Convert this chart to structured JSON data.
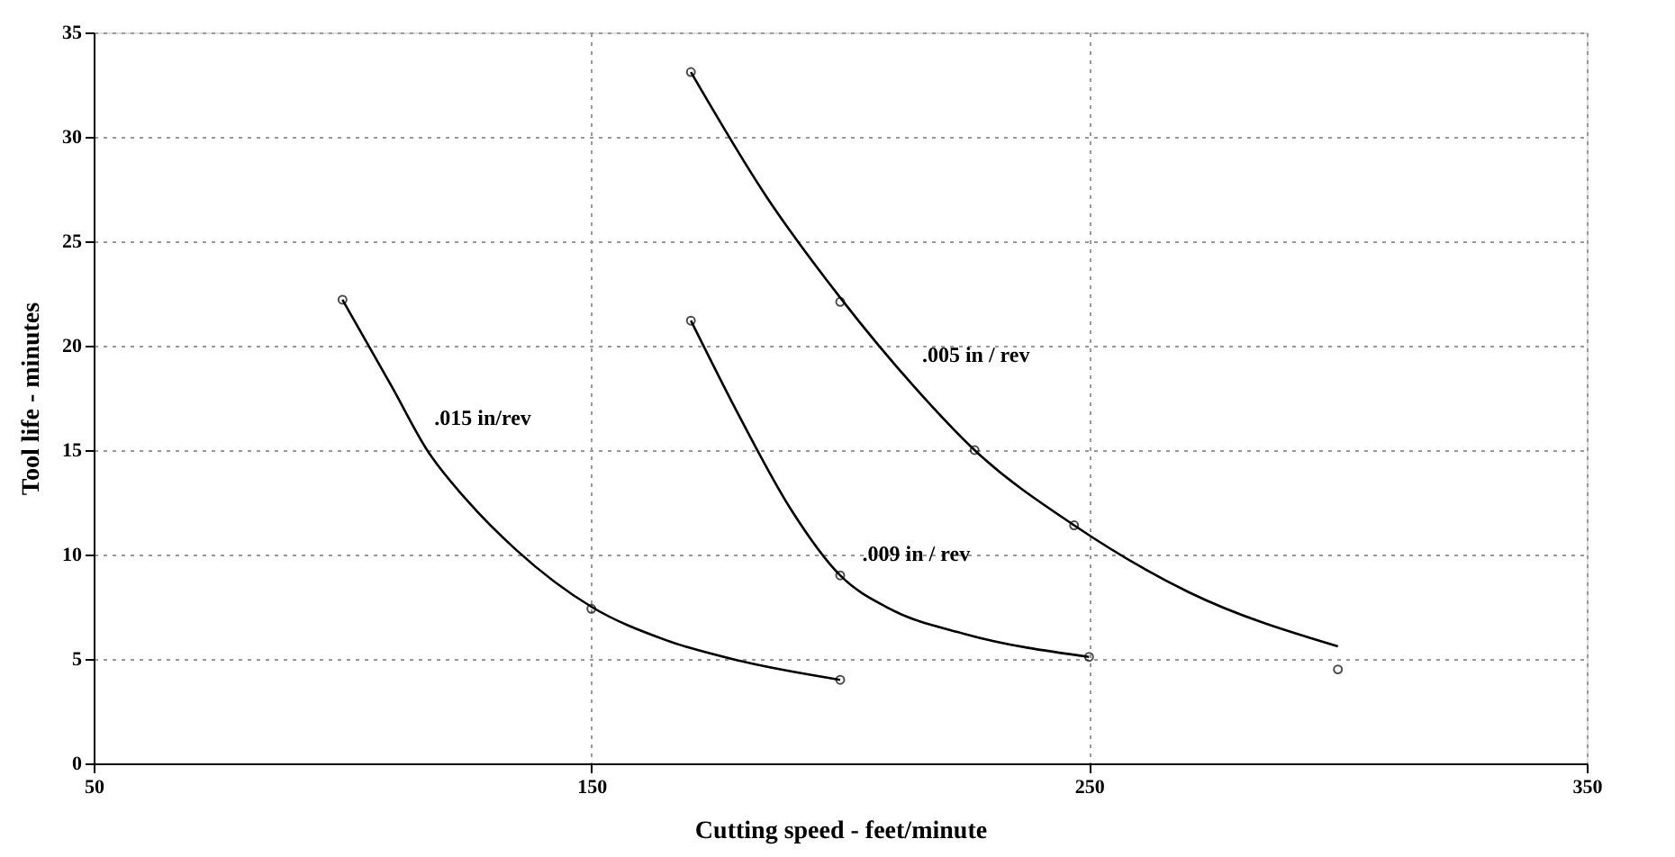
{
  "chart_data": {
    "type": "line",
    "xlabel": "Cutting speed - feet/minute",
    "ylabel": "Tool life - minutes",
    "xlim": [
      50,
      350
    ],
    "xticks": [
      50,
      150,
      250,
      350
    ],
    "ylim": [
      0,
      35
    ],
    "yticks": [
      0,
      5,
      10,
      15,
      20,
      25,
      30,
      35
    ],
    "grid": true,
    "legend": false,
    "series": [
      {
        "color": "#000000",
        "marker": "none",
        "x": [
          100,
          110,
          117,
          125,
          135,
          150,
          165,
          180,
          200
        ],
        "values": [
          22.2,
          18.0,
          15.0,
          12.6,
          10.2,
          7.5,
          5.9,
          4.9,
          4.0
        ]
      },
      {
        "color": "#000000",
        "marker": "none",
        "x": [
          170,
          180,
          190,
          200,
          210,
          225,
          250
        ],
        "values": [
          21.2,
          16.5,
          12.2,
          9.0,
          7.4,
          6.2,
          5.1
        ]
      },
      {
        "color": "#000000",
        "marker": "none",
        "x": [
          170,
          185,
          200,
          215,
          227,
          247,
          270,
          300
        ],
        "values": [
          33.1,
          27.2,
          22.3,
          18.0,
          15.0,
          11.4,
          8.2,
          5.6
        ]
      },
      {
        "type": "scatter",
        "color": "#000000",
        "marker": "circle",
        "x": [
          100,
          150,
          200
        ],
        "values": [
          22.2,
          7.4,
          4.0
        ]
      },
      {
        "type": "scatter",
        "color": "#000000",
        "marker": "circle",
        "x": [
          170,
          200,
          250
        ],
        "values": [
          21.2,
          9.0,
          5.1
        ]
      },
      {
        "type": "scatter",
        "color": "#000000",
        "marker": "circle",
        "x": [
          170,
          200,
          227,
          247,
          300
        ],
        "values": [
          33.1,
          22.1,
          15.0,
          11.4,
          4.5
        ]
      }
    ],
    "annotations": [
      {
        "text": ".015 in/rev",
        "x": 117,
        "y": 15.0
      },
      {
        "text": ".009 in / rev",
        "x": 203,
        "y": 8.5
      },
      {
        "text": ".005 in / rev",
        "x": 215,
        "y": 18.0
      }
    ]
  }
}
